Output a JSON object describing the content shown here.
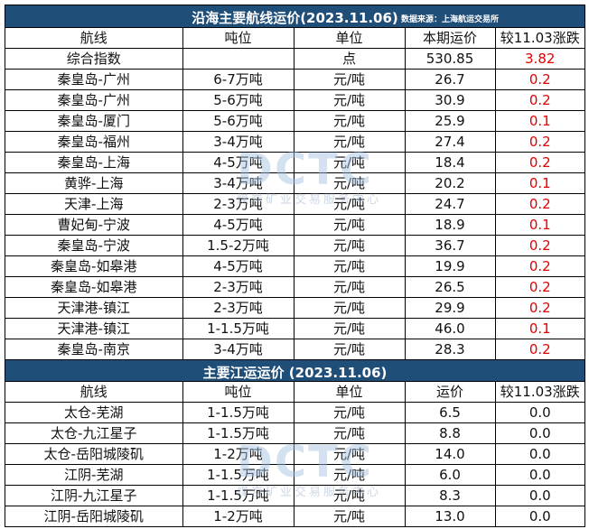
{
  "coastal": {
    "title": "沿海主要航线运价(2023.11.06)",
    "source": "数据来源：上海航运交易所",
    "headers": [
      "航线",
      "吨位",
      "单位",
      "本期运价",
      "较11.03涨跌"
    ],
    "index_row": {
      "route": "综合指数",
      "tonnage": "",
      "unit": "点",
      "rate": "530.85",
      "change": "3.82"
    },
    "rows": [
      {
        "route": "秦皇岛-广州",
        "tonnage": "6-7万吨",
        "unit": "元/吨",
        "rate": "26.7",
        "change": "0.2"
      },
      {
        "route": "秦皇岛-广州",
        "tonnage": "5-6万吨",
        "unit": "元/吨",
        "rate": "30.9",
        "change": "0.2"
      },
      {
        "route": "秦皇岛-厦门",
        "tonnage": "5-6万吨",
        "unit": "元/吨",
        "rate": "25.9",
        "change": "0.1"
      },
      {
        "route": "秦皇岛-福州",
        "tonnage": "3-4万吨",
        "unit": "元/吨",
        "rate": "27.4",
        "change": "0.2"
      },
      {
        "route": "秦皇岛-上海",
        "tonnage": "4-5万吨",
        "unit": "元/吨",
        "rate": "18.4",
        "change": "0.2"
      },
      {
        "route": "黄骅-上海",
        "tonnage": "3-4万吨",
        "unit": "元/吨",
        "rate": "20.2",
        "change": "0.1"
      },
      {
        "route": "天津-上海",
        "tonnage": "2-3万吨",
        "unit": "元/吨",
        "rate": "24.7",
        "change": "0.2"
      },
      {
        "route": "曹妃甸-宁波",
        "tonnage": "4-5万吨",
        "unit": "元/吨",
        "rate": "18.9",
        "change": "0.1"
      },
      {
        "route": "秦皇岛-宁波",
        "tonnage": "1.5-2万吨",
        "unit": "元/吨",
        "rate": "36.7",
        "change": "0.2"
      },
      {
        "route": "秦皇岛-如皋港",
        "tonnage": "4-5万吨",
        "unit": "元/吨",
        "rate": "19.9",
        "change": "0.2"
      },
      {
        "route": "秦皇岛-如皋港",
        "tonnage": "2-3万吨",
        "unit": "元/吨",
        "rate": "26.5",
        "change": "0.2"
      },
      {
        "route": "天津港-镇江",
        "tonnage": "2-3万吨",
        "unit": "元/吨",
        "rate": "29.9",
        "change": "0.2"
      },
      {
        "route": "天津港-镇江",
        "tonnage": "1-1.5万吨",
        "unit": "元/吨",
        "rate": "46.0",
        "change": "0.1"
      },
      {
        "route": "秦皇岛-南京",
        "tonnage": "3-4万吨",
        "unit": "元/吨",
        "rate": "28.3",
        "change": "0.2"
      }
    ]
  },
  "river": {
    "title": "主要江运运价 (2023.11.06)",
    "headers": [
      "航线",
      "吨位",
      "单位",
      "运价",
      "较11.03涨跌"
    ],
    "rows": [
      {
        "route": "太仓-芜湖",
        "tonnage": "1-1.5万吨",
        "unit": "元/吨",
        "rate": "6.5",
        "change": "0.0"
      },
      {
        "route": "太仓-九江星子",
        "tonnage": "1-1.5万吨",
        "unit": "元/吨",
        "rate": "8.8",
        "change": "0.0"
      },
      {
        "route": "太仓-岳阳城陵矶",
        "tonnage": "1-2万吨",
        "unit": "元/吨",
        "rate": "14.0",
        "change": "0.0"
      },
      {
        "route": "江阴-芜湖",
        "tonnage": "1-1.5万吨",
        "unit": "元/吨",
        "rate": "6.0",
        "change": "0.0"
      },
      {
        "route": "江阴-九江星子",
        "tonnage": "1-1.5万吨",
        "unit": "元/吨",
        "rate": "8.3",
        "change": "0.0"
      },
      {
        "route": "江阴-岳阳城陵矶",
        "tonnage": "1-2万吨",
        "unit": "元/吨",
        "rate": "13.0",
        "change": "0.0"
      }
    ]
  },
  "watermark": {
    "logo": "DCTC",
    "text": "煤炭矿业交易服务中心"
  },
  "colors": {
    "title_bg": "#1f4e79",
    "change_positive": "#e00000"
  }
}
